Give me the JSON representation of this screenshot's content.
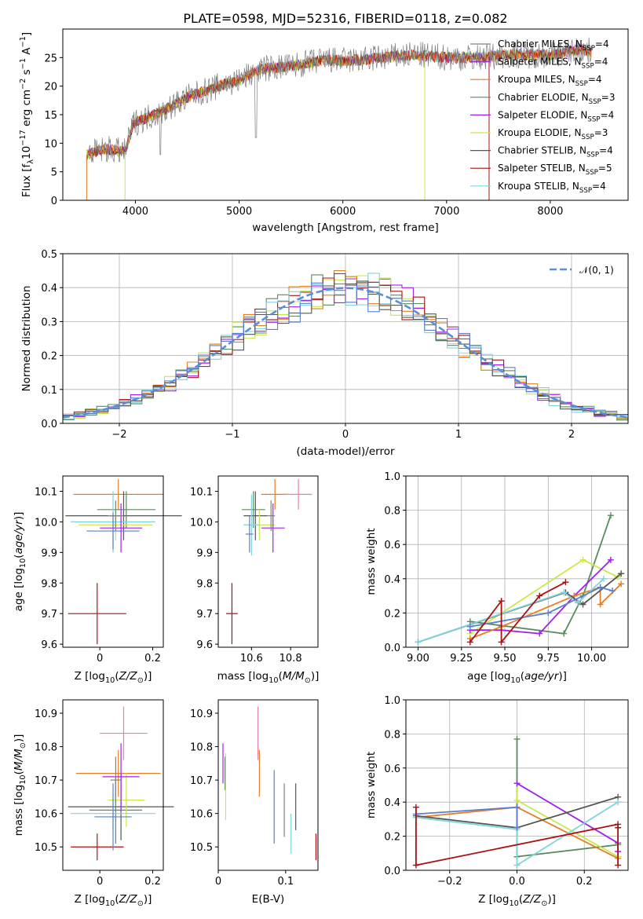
{
  "figure_title": "PLATE=0598, MJD=52316, FIBERID=0118, z=0.082",
  "colors": {
    "Chabrier MILES": "#7f7f7f",
    "Salpeter MILES": "#9a32cd",
    "Kroupa MILES": "#e67e22",
    "Chabrier ELODIE": "#5a8a5e",
    "Salpeter ELODIE": "#a020f0",
    "Kroupa ELODIE": "#c8e84c",
    "Chabrier STELIB": "#555555",
    "Salpeter STELIB": "#aa1111",
    "Kroupa STELIB": "#7fd4dc",
    "gaussian": "#5a8fd8",
    "extra_pink": "#e87fb0",
    "extra_blue": "#5a7fd0"
  },
  "chart_data": [
    {
      "panel": "spectrum",
      "type": "line",
      "xlabel": "wavelength [Angstrom, rest frame]",
      "ylabel": "Flux [f_λ10^-17 erg cm^-2 s^-1 A^-1]",
      "ylabel_parts": {
        "a": "Flux [f",
        "b": "λ",
        "c": "10",
        "d": "−17",
        "e": " erg cm",
        "f": "−2",
        "g": " s",
        "h": "−1",
        "i": " A",
        "j": "−1",
        "k": "]"
      },
      "xlim": [
        3300,
        8750
      ],
      "ylim": [
        0,
        30
      ],
      "xticks": [
        4000,
        5000,
        6000,
        7000,
        8000
      ],
      "yticks": [
        0,
        5,
        10,
        15,
        20,
        25
      ],
      "legend_position": "top-right",
      "legend": [
        {
          "label": "Chabrier MILES, N",
          "sub": "SSP",
          "tail": "=4"
        },
        {
          "label": "Salpeter MILES, N",
          "sub": "SSP",
          "tail": "=4"
        },
        {
          "label": "Kroupa MILES, N",
          "sub": "SSP",
          "tail": "=4"
        },
        {
          "label": "Chabrier ELODIE, N",
          "sub": "SSP",
          "tail": "=3"
        },
        {
          "label": "Salpeter ELODIE, N",
          "sub": "SSP",
          "tail": "=4"
        },
        {
          "label": "Kroupa ELODIE, N",
          "sub": "SSP",
          "tail": "=3"
        },
        {
          "label": "Chabrier STELIB, N",
          "sub": "SSP",
          "tail": "=4"
        },
        {
          "label": "Salpeter STELIB, N",
          "sub": "SSP",
          "tail": "=5"
        },
        {
          "label": "Kroupa STELIB, N",
          "sub": "SSP",
          "tail": "=4"
        }
      ],
      "continuum": {
        "x": [
          3530,
          3700,
          3900,
          3980,
          4050,
          4300,
          4500,
          4800,
          5000,
          5200,
          5500,
          5800,
          6100,
          6400,
          6700,
          7000,
          7300,
          7600,
          8000,
          8300,
          8400
        ],
        "y": [
          8,
          9,
          8.5,
          13.5,
          14,
          16,
          18,
          20,
          21,
          23,
          23.5,
          24.5,
          24.5,
          25,
          25.5,
          25,
          25,
          25.5,
          25.5,
          26.5,
          26
        ]
      },
      "drops": [
        {
          "x": 3530,
          "to": 0
        },
        {
          "x": 3900,
          "to": 0
        },
        {
          "x": 6790,
          "to": 0
        },
        {
          "x": 7410,
          "to": 0
        }
      ]
    },
    {
      "panel": "residuals",
      "type": "line",
      "xlabel": "(data-model)/error",
      "ylabel": "Normed distribution",
      "xlim": [
        -2.5,
        2.5
      ],
      "ylim": [
        0,
        0.5
      ],
      "xticks": [
        -2,
        -1,
        0,
        1,
        2
      ],
      "xtick_labels": [
        "−2",
        "−1",
        "0",
        "1",
        "2"
      ],
      "yticks": [
        0.0,
        0.1,
        0.2,
        0.3,
        0.4,
        0.5
      ],
      "grid": true,
      "legend": "𝒩(0, 1)",
      "legend_position": "top-right",
      "gaussian": {
        "mean": 0,
        "sigma": 1
      },
      "bin_width": 0.1
    },
    {
      "panel": "age_vs_Z",
      "type": "scatter",
      "xlabel": "Z [log10(Z/Z⊙)]",
      "ylabel": "age  [log10(age/yr)]",
      "xlim": [
        -0.14,
        0.24
      ],
      "ylim": [
        9.59,
        10.15
      ],
      "xticks": [
        0.0,
        0.2
      ],
      "yticks": [
        9.6,
        9.7,
        9.8,
        9.9,
        10.0,
        10.1
      ],
      "points": [
        {
          "x": -0.01,
          "y": 9.7,
          "xerr": 0.11,
          "yerr": 0.1,
          "c": "Salpeter STELIB"
        },
        {
          "x": 0.07,
          "y": 10.09,
          "xerr": 0.17,
          "yerr": 0.05,
          "c": "Kroupa MILES"
        },
        {
          "x": 0.09,
          "y": 10.02,
          "xerr": 0.22,
          "yerr": 0.08,
          "c": "Chabrier STELIB"
        },
        {
          "x": 0.1,
          "y": 10.04,
          "xerr": 0.11,
          "yerr": 0.06,
          "c": "Chabrier ELODIE"
        },
        {
          "x": 0.06,
          "y": 9.99,
          "xerr": 0.14,
          "yerr": 0.05,
          "c": "Kroupa ELODIE"
        },
        {
          "x": 0.05,
          "y": 10.0,
          "xerr": 0.16,
          "yerr": 0.1,
          "c": "Kroupa STELIB"
        },
        {
          "x": 0.05,
          "y": 9.97,
          "xerr": 0.1,
          "yerr": 0.06,
          "c": "extra_blue"
        },
        {
          "x": 0.08,
          "y": 9.98,
          "xerr": 0.08,
          "yerr": 0.08,
          "c": "Salpeter ELODIE"
        },
        {
          "x": 0.06,
          "y": 10.02,
          "xerr": 0.03,
          "yerr": 0.05,
          "c": "Chabrier MILES"
        }
      ]
    },
    {
      "panel": "age_vs_mass",
      "type": "scatter",
      "xlabel": "mass [log10(M/M⊙)]",
      "xlim": [
        10.43,
        10.94
      ],
      "ylim": [
        9.59,
        10.15
      ],
      "xticks": [
        10.6,
        10.8
      ],
      "yticks": [
        9.6,
        9.7,
        9.8,
        9.9,
        10.0,
        10.1
      ],
      "points": [
        {
          "x": 10.5,
          "y": 9.7,
          "xerr": 0.03,
          "yerr": 0.1,
          "c": "Salpeter STELIB"
        },
        {
          "x": 10.72,
          "y": 10.09,
          "xerr": 0.07,
          "yerr": 0.05,
          "c": "Kroupa MILES"
        },
        {
          "x": 10.84,
          "y": 10.09,
          "xerr": 0.07,
          "yerr": 0.05,
          "c": "extra_pink"
        },
        {
          "x": 10.62,
          "y": 10.02,
          "xerr": 0.06,
          "yerr": 0.08,
          "c": "Chabrier STELIB"
        },
        {
          "x": 10.61,
          "y": 10.04,
          "xerr": 0.06,
          "yerr": 0.06,
          "c": "Chabrier ELODIE"
        },
        {
          "x": 10.64,
          "y": 9.99,
          "xerr": 0.08,
          "yerr": 0.05,
          "c": "Kroupa ELODIE"
        },
        {
          "x": 10.6,
          "y": 9.99,
          "xerr": 0.04,
          "yerr": 0.1,
          "c": "Kroupa STELIB"
        },
        {
          "x": 10.59,
          "y": 9.96,
          "xerr": 0.02,
          "yerr": 0.06,
          "c": "extra_blue"
        },
        {
          "x": 10.71,
          "y": 9.98,
          "xerr": 0.06,
          "yerr": 0.08,
          "c": "Salpeter ELODIE"
        },
        {
          "x": 10.7,
          "y": 10.02,
          "xerr": 0.02,
          "yerr": 0.05,
          "c": "Chabrier MILES"
        }
      ]
    },
    {
      "panel": "weight_vs_age",
      "type": "line",
      "xlabel": "age  [log10(age/yr)]",
      "ylabel": "mass weight",
      "xlim": [
        8.93,
        10.21
      ],
      "ylim": [
        0,
        1.0
      ],
      "xticks": [
        9.0,
        9.25,
        9.5,
        9.75,
        10.0
      ],
      "xtick_labels": [
        "9.00",
        "9.25",
        "9.50",
        "9.75",
        "10.00"
      ],
      "yticks": [
        0.0,
        0.2,
        0.4,
        0.6,
        0.8,
        1.0
      ],
      "grid": true,
      "series": [
        {
          "c": "Chabrier ELODIE",
          "x": [
            9.3,
            9.84,
            9.95,
            10.11
          ],
          "y": [
            0.15,
            0.08,
            0.3,
            0.77
          ]
        },
        {
          "c": "Kroupa ELODIE",
          "x": [
            9.3,
            9.95,
            10.15
          ],
          "y": [
            0.08,
            0.51,
            0.41
          ]
        },
        {
          "c": "Salpeter ELODIE",
          "x": [
            9.3,
            9.48,
            9.7,
            9.9,
            10.11
          ],
          "y": [
            0.1,
            0.1,
            0.08,
            0.3,
            0.51
          ]
        },
        {
          "c": "Kroupa MILES",
          "x": [
            9.3,
            9.48,
            9.9,
            10.05,
            10.05,
            10.17
          ],
          "y": [
            0.05,
            0.12,
            0.3,
            0.35,
            0.25,
            0.37
          ]
        },
        {
          "c": "Chabrier STELIB",
          "x": [
            9.0,
            9.85,
            9.95,
            10.17
          ],
          "y": [
            0.03,
            0.32,
            0.25,
            0.43
          ]
        },
        {
          "c": "Kroupa STELIB",
          "x": [
            9.0,
            9.84,
            9.92,
            10.07
          ],
          "y": [
            0.03,
            0.32,
            0.26,
            0.4
          ]
        },
        {
          "c": "extra_blue",
          "x": [
            9.3,
            9.75,
            10.05,
            10.12
          ],
          "y": [
            0.12,
            0.2,
            0.35,
            0.33
          ]
        },
        {
          "c": "Salpeter STELIB",
          "x": [
            9.3,
            9.48,
            9.48,
            9.7,
            9.85
          ],
          "y": [
            0.03,
            0.27,
            0.03,
            0.3,
            0.38
          ]
        }
      ]
    },
    {
      "panel": "mass_vs_Z",
      "type": "scatter",
      "xlabel": "Z [log10(Z/Z⊙)]",
      "ylabel": "mass [log10(M/M⊙)]",
      "xlim": [
        -0.14,
        0.24
      ],
      "ylim": [
        10.43,
        10.94
      ],
      "xticks": [
        0.0,
        0.2
      ],
      "yticks": [
        10.5,
        10.6,
        10.7,
        10.8,
        10.9
      ],
      "points": [
        {
          "x": -0.01,
          "y": 10.5,
          "xerr": 0.1,
          "yerr": 0.04,
          "c": "Salpeter STELIB"
        },
        {
          "x": 0.07,
          "y": 10.72,
          "xerr": 0.16,
          "yerr": 0.07,
          "c": "Kroupa MILES"
        },
        {
          "x": 0.09,
          "y": 10.84,
          "xerr": 0.09,
          "yerr": 0.08,
          "c": "extra_pink"
        },
        {
          "x": 0.08,
          "y": 10.62,
          "xerr": 0.2,
          "yerr": 0.1,
          "c": "Chabrier STELIB"
        },
        {
          "x": 0.06,
          "y": 10.61,
          "xerr": 0.1,
          "yerr": 0.1,
          "c": "Chabrier ELODIE"
        },
        {
          "x": 0.1,
          "y": 10.64,
          "xerr": 0.07,
          "yerr": 0.08,
          "c": "Kroupa ELODIE"
        },
        {
          "x": 0.05,
          "y": 10.6,
          "xerr": 0.16,
          "yerr": 0.05,
          "c": "Kroupa STELIB"
        },
        {
          "x": 0.05,
          "y": 10.59,
          "xerr": 0.07,
          "yerr": 0.1,
          "c": "extra_blue"
        },
        {
          "x": 0.08,
          "y": 10.71,
          "xerr": 0.07,
          "yerr": 0.1,
          "c": "Salpeter ELODIE"
        },
        {
          "x": 0.06,
          "y": 10.7,
          "xerr": 0.02,
          "yerr": 0.07,
          "c": "Chabrier MILES"
        }
      ]
    },
    {
      "panel": "mass_vs_ebv",
      "type": "scatter",
      "xlabel": "E(B-V)",
      "xlim": [
        0.0,
        0.148
      ],
      "ylim": [
        10.43,
        10.94
      ],
      "xticks": [
        0.0,
        0.1
      ],
      "yticks": [
        10.5,
        10.6,
        10.7,
        10.8,
        10.9
      ],
      "points": [
        {
          "x": 0.145,
          "y": 10.5,
          "xerr": 0.0,
          "yerr": 0.04,
          "c": "Salpeter STELIB"
        },
        {
          "x": 0.061,
          "y": 10.72,
          "xerr": 0.0,
          "yerr": 0.07,
          "c": "Kroupa MILES"
        },
        {
          "x": 0.059,
          "y": 10.84,
          "xerr": 0.0,
          "yerr": 0.08,
          "c": "extra_pink"
        },
        {
          "x": 0.115,
          "y": 10.62,
          "xerr": 0.0,
          "yerr": 0.07,
          "c": "Chabrier STELIB"
        },
        {
          "x": 0.01,
          "y": 10.72,
          "xerr": 0.0,
          "yerr": 0.05,
          "c": "Chabrier ELODIE"
        },
        {
          "x": 0.011,
          "y": 10.68,
          "xerr": 0.0,
          "yerr": 0.1,
          "c": "Kroupa ELODIE"
        },
        {
          "x": 0.108,
          "y": 10.54,
          "xerr": 0.0,
          "yerr": 0.06,
          "c": "Kroupa STELIB"
        },
        {
          "x": 0.083,
          "y": 10.62,
          "xerr": 0.0,
          "yerr": 0.11,
          "c": "extra_blue"
        },
        {
          "x": 0.007,
          "y": 10.75,
          "xerr": 0.0,
          "yerr": 0.06,
          "c": "Salpeter ELODIE"
        },
        {
          "x": 0.098,
          "y": 10.61,
          "xerr": 0.0,
          "yerr": 0.08,
          "c": "Chabrier MILES"
        }
      ]
    },
    {
      "panel": "weight_vs_Z",
      "type": "line",
      "xlabel": "Z [log10(Z/Z⊙)]",
      "ylabel": "mass weight",
      "xlim": [
        -0.33,
        0.33
      ],
      "ylim": [
        0,
        1.0
      ],
      "xticks": [
        -0.2,
        0.0,
        0.2
      ],
      "xtick_labels": [
        "−0.2",
        "0.0",
        "0.2"
      ],
      "yticks": [
        0.0,
        0.2,
        0.4,
        0.6,
        0.8,
        1.0
      ],
      "grid": true,
      "series": [
        {
          "c": "Chabrier ELODIE",
          "x": [
            0.0,
            0.0,
            0.0,
            0.3
          ],
          "y": [
            0.77,
            0.08,
            0.08,
            0.15
          ]
        },
        {
          "c": "Kroupa ELODIE",
          "x": [
            0.0,
            0.0,
            0.3
          ],
          "y": [
            0.51,
            0.41,
            0.08
          ]
        },
        {
          "c": "Salpeter ELODIE",
          "x": [
            0.0,
            0.3,
            0.3
          ],
          "y": [
            0.51,
            0.16,
            0.11
          ]
        },
        {
          "c": "Kroupa MILES",
          "x": [
            -0.3,
            0.0,
            0.3
          ],
          "y": [
            0.31,
            0.37,
            0.07
          ]
        },
        {
          "c": "Chabrier STELIB",
          "x": [
            -0.3,
            0.0,
            0.0,
            0.3
          ],
          "y": [
            0.32,
            0.25,
            0.25,
            0.43
          ]
        },
        {
          "c": "Kroupa STELIB",
          "x": [
            -0.3,
            0.0,
            0.0,
            0.3
          ],
          "y": [
            0.31,
            0.24,
            0.03,
            0.4
          ]
        },
        {
          "c": "extra_blue",
          "x": [
            -0.3,
            0.0,
            0.0
          ],
          "y": [
            0.33,
            0.37,
            0.25
          ]
        },
        {
          "c": "Salpeter STELIB",
          "x": [
            -0.3,
            -0.3,
            0.3,
            0.3,
            0.3
          ],
          "y": [
            0.37,
            0.03,
            0.27,
            0.03,
            0.25
          ]
        }
      ]
    }
  ]
}
